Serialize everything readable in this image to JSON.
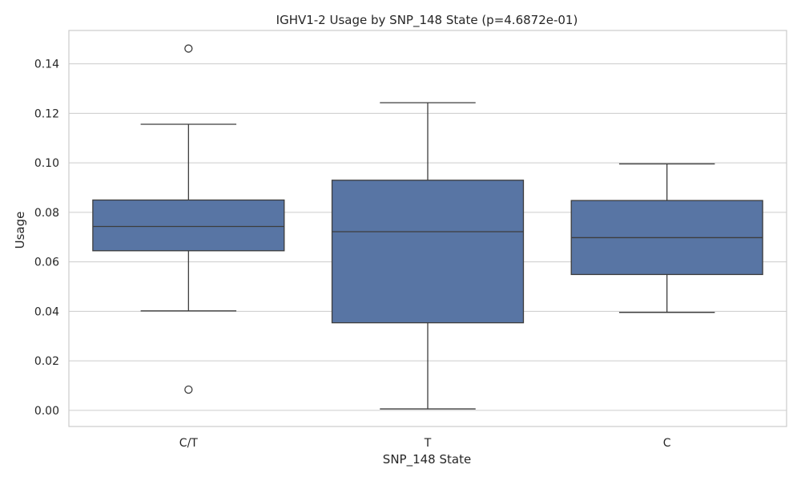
{
  "chart_data": {
    "type": "box",
    "title": "IGHV1-2 Usage by SNP_148 State (p=4.6872e-01)",
    "xlabel": "SNP_148 State",
    "ylabel": "Usage",
    "ylim": [
      -0.0065,
      0.1535
    ],
    "yticks": [
      0.0,
      0.02,
      0.04,
      0.06,
      0.08,
      0.1,
      0.12,
      0.14
    ],
    "ytick_labels": [
      "0.00",
      "0.02",
      "0.04",
      "0.06",
      "0.08",
      "0.10",
      "0.12",
      "0.14"
    ],
    "grid": true,
    "box_color": "#5875a4",
    "line_color": "#3d3d3d",
    "grid_color": "#cccccc",
    "groups": [
      {
        "category": "C/T",
        "whisker_low": 0.0402,
        "q1": 0.0645,
        "median": 0.0743,
        "q3": 0.085,
        "whisker_high": 0.1156,
        "outliers": [
          0.0084,
          0.1462
        ]
      },
      {
        "category": "T",
        "whisker_low": 0.0006,
        "q1": 0.0354,
        "median": 0.0722,
        "q3": 0.093,
        "whisker_high": 0.1243,
        "outliers": []
      },
      {
        "category": "C",
        "whisker_low": 0.0396,
        "q1": 0.0549,
        "median": 0.0698,
        "q3": 0.0848,
        "whisker_high": 0.0996,
        "outliers": []
      }
    ]
  }
}
